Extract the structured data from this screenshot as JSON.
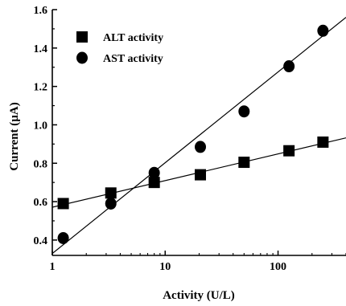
{
  "chart_data": {
    "type": "scatter",
    "xlabel": "Activity (U/L)",
    "ylabel": "Current (µA)",
    "xscale": "log",
    "xlim": [
      1,
      400
    ],
    "ylim": [
      0.32,
      1.6
    ],
    "x_ticks": [
      {
        "value": 1,
        "label": "1"
      },
      {
        "value": 10,
        "label": "10"
      },
      {
        "value": 100,
        "label": "100"
      }
    ],
    "y_ticks": [
      {
        "value": 0.4,
        "label": "0.4"
      },
      {
        "value": 0.6,
        "label": "0.6"
      },
      {
        "value": 0.8,
        "label": "0.8"
      },
      {
        "value": 1.0,
        "label": "1.0"
      },
      {
        "value": 1.2,
        "label": "1.2"
      },
      {
        "value": 1.4,
        "label": "1.4"
      },
      {
        "value": 1.6,
        "label": "1.6"
      }
    ],
    "grid": false,
    "legend_position": "top-left",
    "series": [
      {
        "name": "ALT activity",
        "marker": "square",
        "color": "#000000",
        "points": [
          {
            "x": 1.25,
            "y": 0.59
          },
          {
            "x": 3.3,
            "y": 0.645
          },
          {
            "x": 8.0,
            "y": 0.7
          },
          {
            "x": 20.5,
            "y": 0.74
          },
          {
            "x": 50,
            "y": 0.805
          },
          {
            "x": 125,
            "y": 0.865
          },
          {
            "x": 250,
            "y": 0.91
          }
        ],
        "fit": [
          {
            "x": 1,
            "y": 0.571
          },
          {
            "x": 400,
            "y": 0.932
          }
        ]
      },
      {
        "name": "AST activity",
        "marker": "circle",
        "color": "#000000",
        "points": [
          {
            "x": 1.25,
            "y": 0.41
          },
          {
            "x": 3.3,
            "y": 0.59
          },
          {
            "x": 8.0,
            "y": 0.75
          },
          {
            "x": 20.5,
            "y": 0.885
          },
          {
            "x": 50,
            "y": 1.07
          },
          {
            "x": 125,
            "y": 1.305
          },
          {
            "x": 250,
            "y": 1.49
          }
        ],
        "fit": [
          {
            "x": 1,
            "y": 0.33
          },
          {
            "x": 400,
            "y": 1.56
          }
        ]
      }
    ]
  }
}
